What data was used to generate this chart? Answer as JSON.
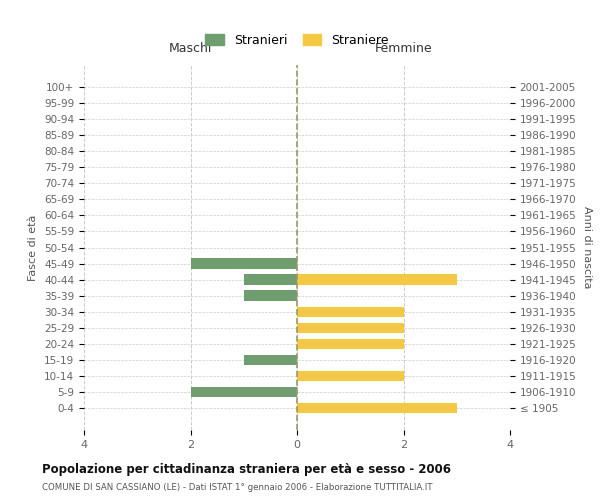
{
  "age_groups": [
    "100+",
    "95-99",
    "90-94",
    "85-89",
    "80-84",
    "75-79",
    "70-74",
    "65-69",
    "60-64",
    "55-59",
    "50-54",
    "45-49",
    "40-44",
    "35-39",
    "30-34",
    "25-29",
    "20-24",
    "15-19",
    "10-14",
    "5-9",
    "0-4"
  ],
  "birth_years": [
    "≤ 1905",
    "1906-1910",
    "1911-1915",
    "1916-1920",
    "1921-1925",
    "1926-1930",
    "1931-1935",
    "1936-1940",
    "1941-1945",
    "1946-1950",
    "1951-1955",
    "1956-1960",
    "1961-1965",
    "1966-1970",
    "1971-1975",
    "1976-1980",
    "1981-1985",
    "1986-1990",
    "1991-1995",
    "1996-2000",
    "2001-2005"
  ],
  "males": [
    0,
    0,
    0,
    0,
    0,
    0,
    0,
    0,
    0,
    0,
    0,
    2,
    1,
    1,
    0,
    0,
    0,
    1,
    0,
    2,
    0
  ],
  "females": [
    0,
    0,
    0,
    0,
    0,
    0,
    0,
    0,
    0,
    0,
    0,
    0,
    3,
    0,
    2,
    2,
    2,
    0,
    2,
    0,
    3
  ],
  "male_color": "#6e9e6e",
  "female_color": "#f5c842",
  "background_color": "#ffffff",
  "grid_color": "#cccccc",
  "center_line_color": "#999966",
  "title": "Popolazione per cittadinanza straniera per età e sesso - 2006",
  "subtitle": "COMUNE DI SAN CASSIANO (LE) - Dati ISTAT 1° gennaio 2006 - Elaborazione TUTTITALIA.IT",
  "xlabel_left": "Maschi",
  "xlabel_right": "Femmine",
  "ylabel_left": "Fasce di età",
  "ylabel_right": "Anni di nascita",
  "legend_males": "Stranieri",
  "legend_females": "Straniere",
  "xlim": 4,
  "xtick_labels": [
    "4",
    "2",
    "0",
    "2",
    "4"
  ]
}
